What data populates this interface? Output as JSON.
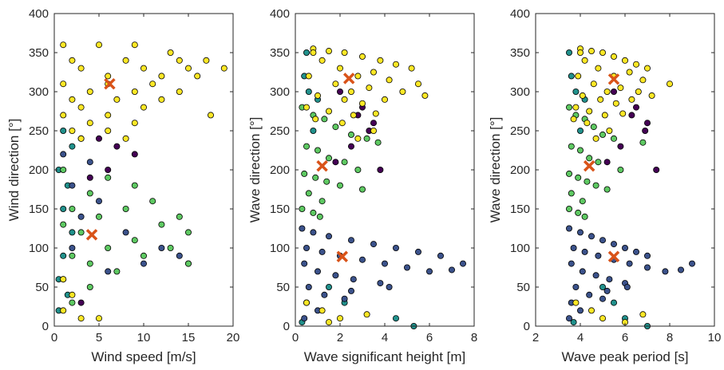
{
  "chart_data": [
    {
      "type": "scatter",
      "xlabel": "Wind speed [m/s]",
      "ylabel": "Wind direction [°]",
      "xlim": [
        0,
        20
      ],
      "xticks": [
        0,
        5,
        10,
        15,
        20
      ],
      "ylim": [
        0,
        400
      ],
      "yticks": [
        0,
        50,
        100,
        150,
        200,
        250,
        300,
        350,
        400
      ],
      "series": [
        {
          "color": "#21918c",
          "x": [
            1,
            2,
            0.5,
            1.5,
            1,
            2,
            1,
            0.5,
            1.5,
            0.5
          ],
          "values": [
            250,
            230,
            200,
            180,
            150,
            120,
            90,
            60,
            40,
            20
          ]
        },
        {
          "color": "#440154",
          "x": [
            5,
            7,
            9,
            6,
            4,
            3
          ],
          "values": [
            240,
            230,
            220,
            200,
            190,
            30
          ]
        },
        {
          "color": "#3b528b",
          "x": [
            3,
            1,
            4,
            2,
            5,
            3,
            8,
            12,
            14,
            15,
            10,
            6,
            2
          ],
          "values": [
            240,
            220,
            210,
            180,
            160,
            140,
            120,
            100,
            90,
            80,
            80,
            70,
            100
          ]
        },
        {
          "color": "#5ec962",
          "x": [
            1,
            6,
            9,
            4,
            11,
            2,
            8,
            14,
            5,
            1,
            12,
            15,
            3,
            9,
            6,
            13,
            2,
            10,
            15,
            4,
            7,
            1,
            4,
            2
          ],
          "values": [
            200,
            190,
            180,
            170,
            160,
            150,
            150,
            140,
            140,
            130,
            130,
            120,
            120,
            110,
            100,
            100,
            90,
            90,
            80,
            80,
            70,
            60,
            50,
            30
          ]
        },
        {
          "color": "#fde725",
          "x": [
            1,
            5,
            9,
            13,
            2,
            8,
            14,
            17,
            19,
            3,
            10,
            15,
            6,
            12,
            16,
            1,
            6,
            11,
            4,
            9,
            14,
            2,
            7,
            12,
            17.5,
            3,
            10,
            1,
            6,
            4,
            9,
            2,
            6,
            3,
            8,
            1,
            2,
            1,
            3,
            5
          ],
          "values": [
            360,
            360,
            360,
            350,
            340,
            340,
            340,
            340,
            330,
            330,
            330,
            330,
            320,
            320,
            320,
            310,
            310,
            310,
            300,
            300,
            300,
            290,
            290,
            290,
            270,
            280,
            280,
            270,
            270,
            260,
            260,
            250,
            250,
            240,
            240,
            60,
            40,
            20,
            10,
            10
          ]
        },
        {
          "color": "#d95319",
          "marker": "x",
          "x": [
            6.2,
            4.2
          ],
          "values": [
            310,
            117
          ]
        }
      ]
    },
    {
      "type": "scatter",
      "xlabel": "Wave significant height [m]",
      "ylabel": "Wave direction [°]",
      "xlim": [
        0,
        8
      ],
      "xticks": [
        0,
        2,
        4,
        6,
        8
      ],
      "ylim": [
        0,
        400
      ],
      "yticks": [
        0,
        50,
        100,
        150,
        200,
        250,
        300,
        350,
        400
      ],
      "series": [
        {
          "color": "#21918c",
          "x": [
            0.5,
            0.4,
            0.6,
            1.0,
            0.8,
            1.5,
            2.2,
            4.5,
            0.3,
            5.3
          ],
          "values": [
            350,
            320,
            300,
            290,
            250,
            50,
            30,
            10,
            5,
            0
          ]
        },
        {
          "color": "#440154",
          "x": [
            2.0,
            2.8,
            3.3,
            3.8,
            2.5,
            1.8,
            3.0,
            3.5
          ],
          "values": [
            300,
            270,
            250,
            200,
            230,
            210,
            280,
            260
          ]
        },
        {
          "color": "#3b528b",
          "x": [
            0.3,
            0.8,
            1.5,
            2.5,
            3.5,
            4.5,
            5.5,
            6.5,
            7.5,
            0.5,
            1.2,
            2.0,
            3.0,
            4.0,
            5.0,
            6.0,
            7.0,
            0.4,
            1.0,
            1.8,
            2.6,
            3.8,
            0.6,
            1.3,
            2.2,
            0.5,
            1.0,
            0.4,
            2.5,
            4.2
          ],
          "values": [
            125,
            120,
            115,
            110,
            105,
            100,
            95,
            90,
            80,
            100,
            95,
            90,
            85,
            80,
            75,
            70,
            72,
            80,
            70,
            65,
            60,
            55,
            50,
            40,
            35,
            30,
            20,
            10,
            45,
            50
          ]
        },
        {
          "color": "#5ec962",
          "x": [
            0.3,
            0.8,
            1.3,
            1.8,
            2.5,
            3.2,
            3.7,
            0.5,
            1.0,
            1.5,
            2.2,
            2.8,
            0.4,
            0.9,
            1.4,
            2.0,
            3.0,
            0.6,
            1.2,
            0.3,
            0.8,
            1.1
          ],
          "values": [
            280,
            270,
            265,
            255,
            245,
            240,
            235,
            230,
            225,
            215,
            210,
            200,
            195,
            190,
            185,
            180,
            175,
            170,
            160,
            150,
            145,
            140
          ]
        },
        {
          "color": "#fde725",
          "x": [
            0.8,
            1.5,
            2.2,
            3.0,
            3.8,
            4.5,
            5.2,
            1.2,
            2.0,
            2.8,
            3.5,
            4.2,
            5.5,
            0.6,
            1.8,
            2.5,
            3.3,
            4.8,
            1.0,
            2.2,
            3.0,
            4.0,
            5.8,
            0.5,
            1.5,
            2.6,
            3.6,
            0.9,
            2.1,
            0.8,
            2.8,
            3.5,
            1.2,
            2.0,
            0.5,
            1.5,
            3.2
          ],
          "values": [
            355,
            352,
            350,
            345,
            340,
            335,
            330,
            340,
            330,
            320,
            325,
            315,
            310,
            320,
            310,
            300,
            305,
            300,
            295,
            290,
            285,
            290,
            295,
            280,
            275,
            270,
            272,
            265,
            260,
            350,
            240,
            250,
            20,
            10,
            30,
            5,
            15
          ]
        },
        {
          "color": "#d95319",
          "marker": "x",
          "x": [
            2.4,
            1.2,
            2.1
          ],
          "values": [
            317,
            205,
            89
          ]
        }
      ]
    },
    {
      "type": "scatter",
      "xlabel": "Wave peak period [s]",
      "ylabel": "Wave direction [°]",
      "xlim": [
        2,
        10
      ],
      "xticks": [
        2,
        4,
        6,
        8,
        10
      ],
      "ylim": [
        0,
        400
      ],
      "yticks": [
        0,
        50,
        100,
        150,
        200,
        250,
        300,
        350,
        400
      ],
      "series": [
        {
          "color": "#21918c",
          "x": [
            3.5,
            3.6,
            3.8,
            4.2,
            4.0,
            5.0,
            5.5,
            6.0,
            3.7,
            7.0
          ],
          "values": [
            350,
            320,
            300,
            290,
            250,
            50,
            30,
            10,
            5,
            0
          ]
        },
        {
          "color": "#440154",
          "x": [
            5.5,
            6.3,
            6.9,
            7.4,
            5.8,
            5.2,
            6.5,
            7.0
          ],
          "values": [
            300,
            270,
            250,
            200,
            230,
            210,
            280,
            260
          ]
        },
        {
          "color": "#3b528b",
          "x": [
            3.5,
            4.0,
            4.5,
            5.0,
            5.5,
            6.0,
            6.5,
            7.0,
            9.0,
            3.7,
            4.2,
            4.8,
            5.5,
            6.2,
            7.0,
            7.8,
            8.5,
            3.6,
            4.1,
            4.7,
            5.3,
            6.0,
            3.8,
            4.4,
            5.0,
            3.6,
            4.0,
            3.5,
            5.2,
            6.1
          ],
          "values": [
            125,
            120,
            115,
            110,
            105,
            100,
            95,
            90,
            80,
            100,
            95,
            90,
            85,
            80,
            75,
            70,
            72,
            80,
            70,
            65,
            60,
            55,
            50,
            40,
            35,
            30,
            20,
            10,
            45,
            50
          ]
        },
        {
          "color": "#5ec962",
          "x": [
            3.5,
            3.8,
            4.2,
            4.6,
            5.0,
            5.5,
            6.8,
            3.6,
            4.0,
            4.4,
            4.8,
            5.8,
            3.5,
            3.9,
            4.3,
            4.7,
            5.2,
            3.6,
            4.1,
            3.5,
            3.9,
            4.2
          ],
          "values": [
            280,
            270,
            265,
            255,
            245,
            240,
            235,
            230,
            225,
            215,
            210,
            200,
            195,
            190,
            185,
            180,
            175,
            170,
            160,
            150,
            145,
            140
          ]
        },
        {
          "color": "#fde725",
          "x": [
            4.0,
            4.5,
            5.0,
            5.5,
            6.0,
            6.5,
            7.0,
            4.2,
            4.8,
            5.5,
            6.2,
            6.8,
            8.0,
            3.9,
            4.6,
            5.2,
            5.8,
            6.6,
            4.1,
            4.9,
            5.6,
            6.3,
            7.2,
            3.8,
            4.4,
            5.1,
            5.9,
            3.7,
            4.3,
            4.0,
            4.7,
            5.3,
            4.5,
            5.0,
            3.8,
            6.0,
            6.8
          ],
          "values": [
            355,
            352,
            350,
            345,
            340,
            335,
            330,
            340,
            330,
            320,
            325,
            315,
            310,
            320,
            310,
            300,
            305,
            300,
            295,
            290,
            285,
            290,
            295,
            280,
            275,
            270,
            272,
            265,
            260,
            350,
            240,
            250,
            20,
            10,
            30,
            5,
            15
          ]
        },
        {
          "color": "#d95319",
          "marker": "x",
          "x": [
            5.5,
            4.4,
            5.5
          ],
          "values": [
            316,
            205,
            89
          ]
        }
      ]
    }
  ]
}
